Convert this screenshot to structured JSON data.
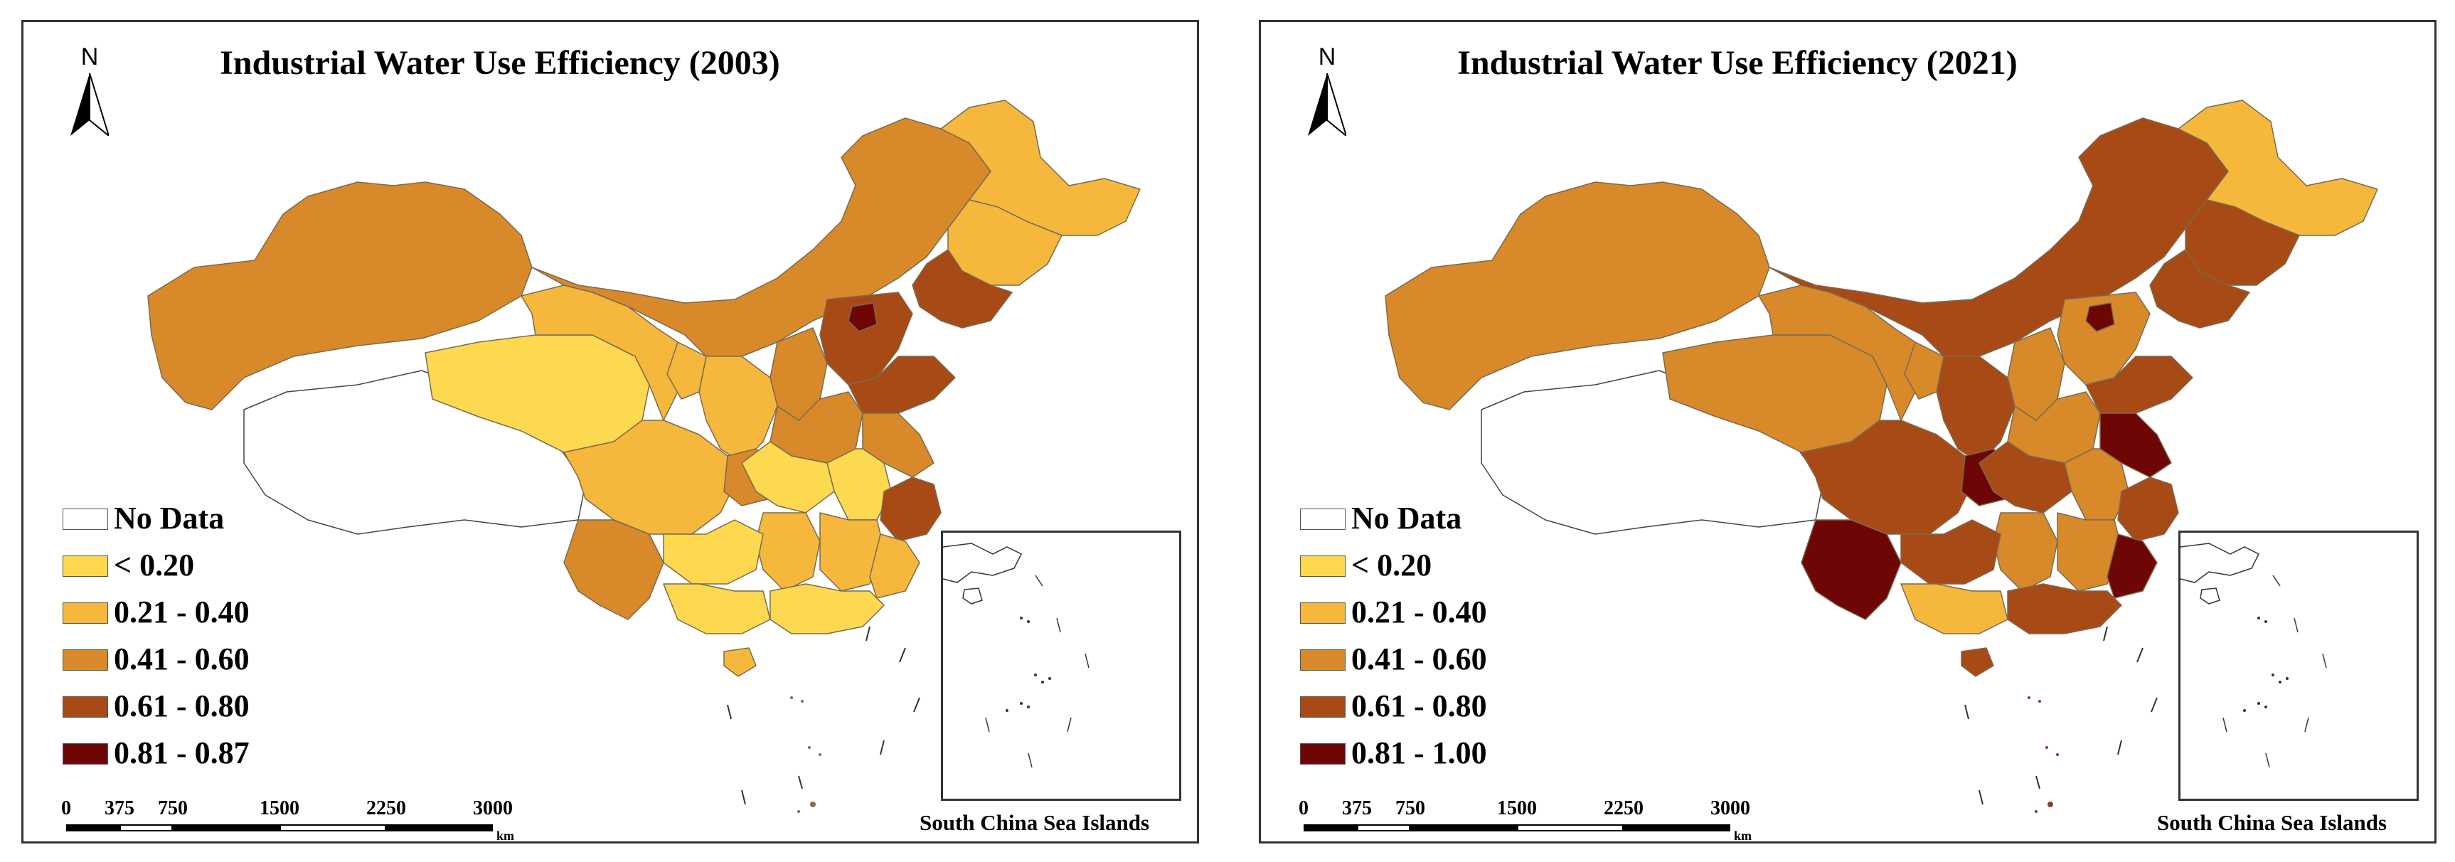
{
  "panels": [
    {
      "title": "Industrial Water Use Efficiency (2003)",
      "north": "N",
      "legend": [
        {
          "label": "No Data",
          "color": "#ffffff"
        },
        {
          "label": "< 0.20",
          "color": "#fcd94f"
        },
        {
          "label": "0.21 - 0.40",
          "color": "#f5b83d"
        },
        {
          "label": "0.41 - 0.60",
          "color": "#d8892a"
        },
        {
          "label": "0.61 - 0.80",
          "color": "#a84a16"
        },
        {
          "label": "0.81 - 0.87",
          "color": "#6f0606"
        }
      ],
      "scale_ticks": [
        "0",
        "375",
        "750",
        "1500",
        "2250",
        "3000"
      ],
      "scale_unit": "km",
      "inset_label": "South China Sea Islands"
    },
    {
      "title": "Industrial Water Use Efficiency (2021)",
      "north": "N",
      "legend": [
        {
          "label": "No Data",
          "color": "#ffffff"
        },
        {
          "label": "< 0.20",
          "color": "#fcd94f"
        },
        {
          "label": "0.21 - 0.40",
          "color": "#f5b83d"
        },
        {
          "label": "0.41 - 0.60",
          "color": "#d8892a"
        },
        {
          "label": "0.61 - 0.80",
          "color": "#a84a16"
        },
        {
          "label": "0.81 - 1.00",
          "color": "#6f0606"
        }
      ],
      "scale_ticks": [
        "0",
        "375",
        "750",
        "1500",
        "2250",
        "3000"
      ],
      "scale_unit": "km",
      "inset_label": "South China Sea Islands"
    }
  ]
}
